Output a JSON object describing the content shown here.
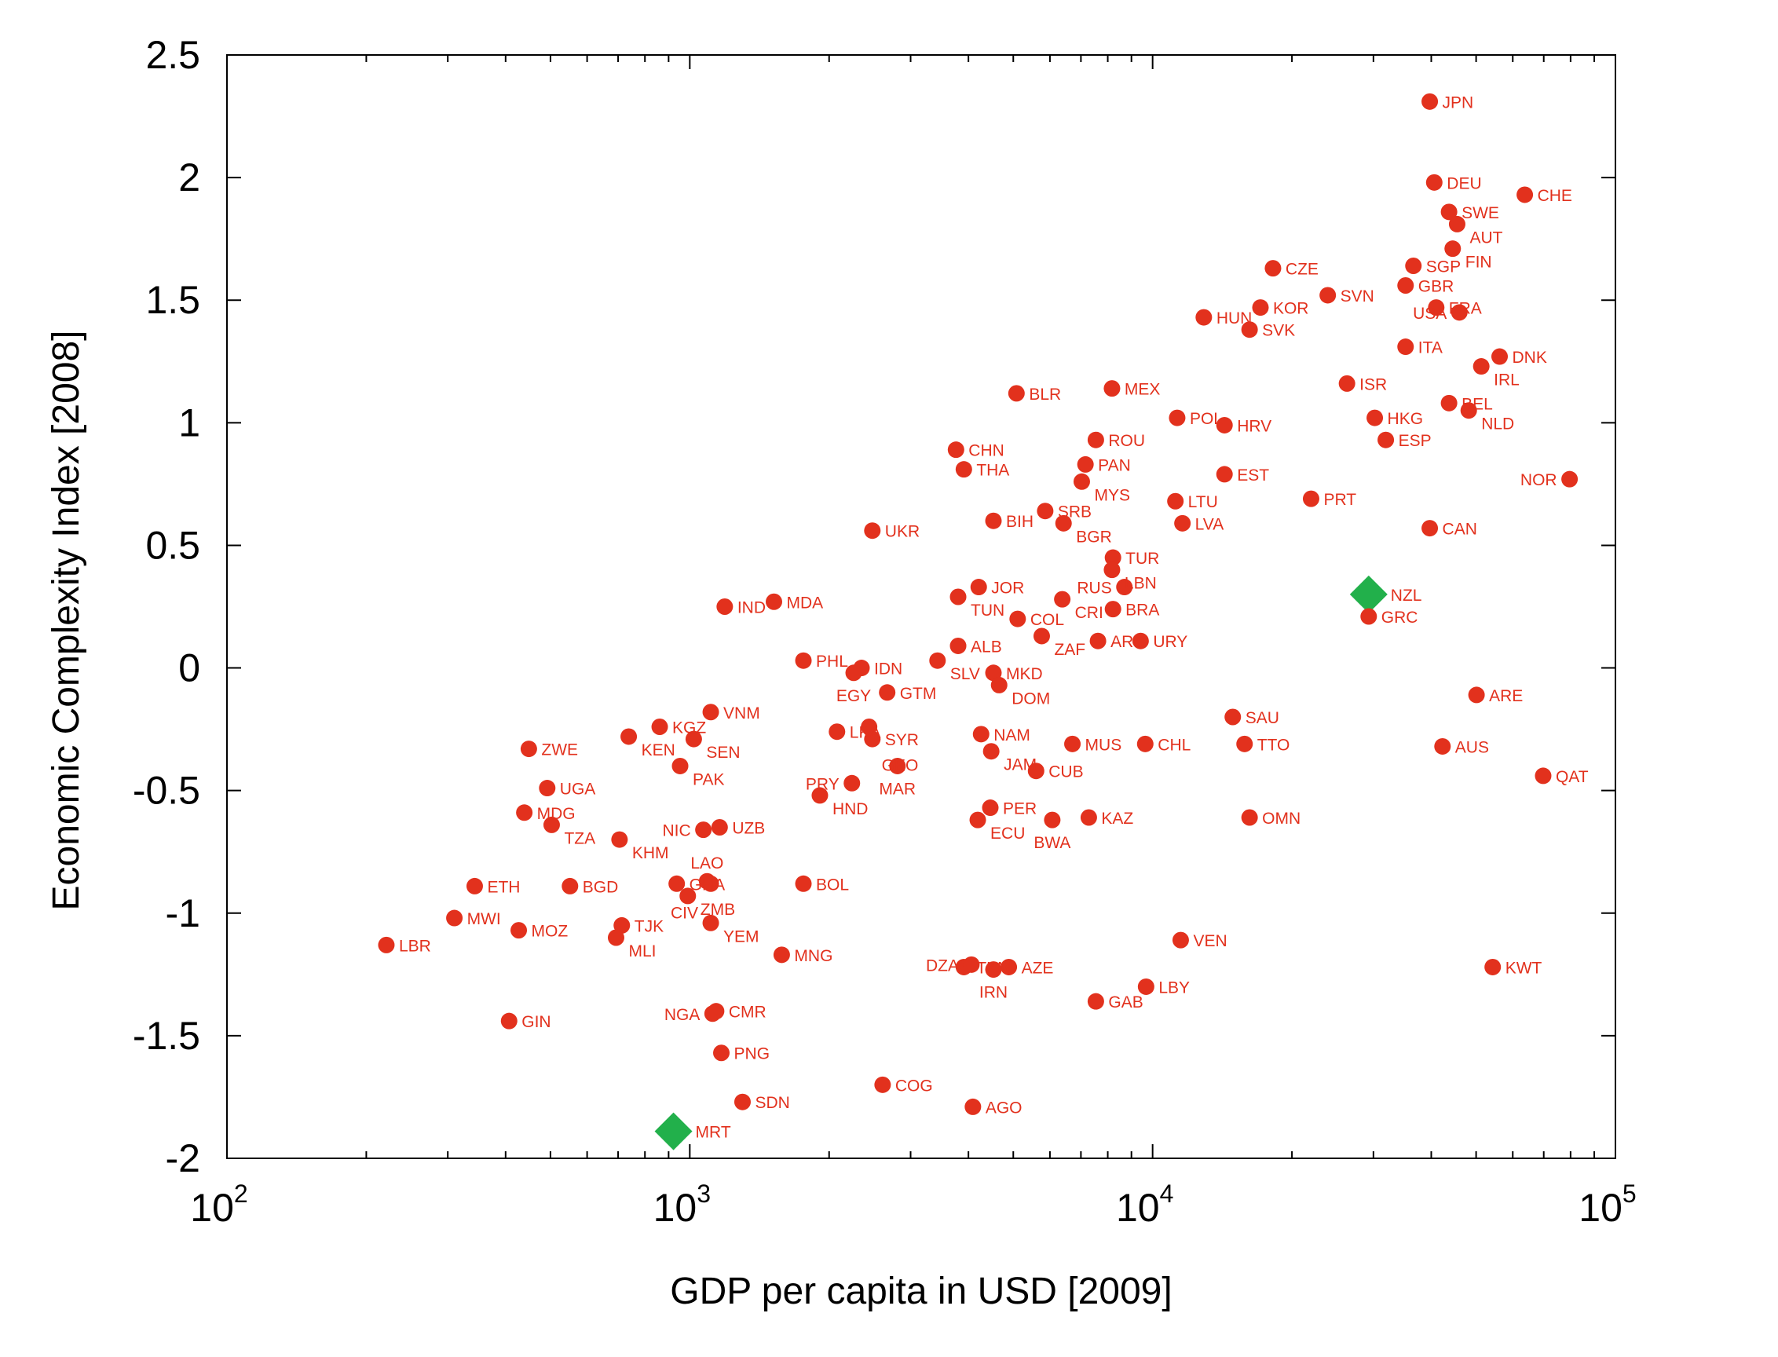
{
  "chart_data": {
    "type": "scatter",
    "title": "",
    "xlabel": "GDP per capita in USD [2009]",
    "ylabel": "Economic Complexity Index [2008]",
    "x_scale": "log",
    "xlim": [
      100,
      100000
    ],
    "ylim": [
      -2,
      2.5
    ],
    "grid": false,
    "x_ticks": [
      {
        "value": 100,
        "base": "10",
        "exp": "2"
      },
      {
        "value": 1000,
        "base": "10",
        "exp": "3"
      },
      {
        "value": 10000,
        "base": "10",
        "exp": "4"
      },
      {
        "value": 100000,
        "base": "10",
        "exp": "5"
      }
    ],
    "y_ticks": [
      {
        "value": 2.5,
        "label": "2.5"
      },
      {
        "value": 2,
        "label": "2"
      },
      {
        "value": 1.5,
        "label": "1.5"
      },
      {
        "value": 1,
        "label": "1"
      },
      {
        "value": 0.5,
        "label": "0.5"
      },
      {
        "value": 0,
        "label": "0"
      },
      {
        "value": -0.5,
        "label": "-0.5"
      },
      {
        "value": -1,
        "label": "-1"
      },
      {
        "value": -1.5,
        "label": "-1.5"
      },
      {
        "value": -2,
        "label": "-2"
      }
    ],
    "colors": {
      "point": "#e2311d",
      "highlight": "#22b04b"
    },
    "points": [
      {
        "label": "JPN",
        "x": 39700,
        "y": 2.31
      },
      {
        "label": "DEU",
        "x": 40600,
        "y": 1.98
      },
      {
        "label": "CHE",
        "x": 63700,
        "y": 1.93
      },
      {
        "label": "SWE",
        "x": 43700,
        "y": 1.86
      },
      {
        "label": "AUT",
        "x": 45500,
        "y": 1.81
      },
      {
        "label": "FIN",
        "x": 44500,
        "y": 1.71
      },
      {
        "label": "CZE",
        "x": 18200,
        "y": 1.63
      },
      {
        "label": "SGP",
        "x": 36600,
        "y": 1.64
      },
      {
        "label": "GBR",
        "x": 35200,
        "y": 1.56
      },
      {
        "label": "SVN",
        "x": 23900,
        "y": 1.52
      },
      {
        "label": "HUN",
        "x": 12900,
        "y": 1.43
      },
      {
        "label": "KOR",
        "x": 17100,
        "y": 1.47
      },
      {
        "label": "FRA",
        "x": 41000,
        "y": 1.47
      },
      {
        "label": "USA",
        "x": 46000,
        "y": 1.45
      },
      {
        "label": "SVK",
        "x": 16200,
        "y": 1.38
      },
      {
        "label": "ITA",
        "x": 35200,
        "y": 1.31
      },
      {
        "label": "DNK",
        "x": 56200,
        "y": 1.27
      },
      {
        "label": "IRL",
        "x": 51300,
        "y": 1.23
      },
      {
        "label": "ISR",
        "x": 26300,
        "y": 1.16
      },
      {
        "label": "BLR",
        "x": 5080,
        "y": 1.12
      },
      {
        "label": "MEX",
        "x": 8170,
        "y": 1.14
      },
      {
        "label": "BEL",
        "x": 43700,
        "y": 1.08
      },
      {
        "label": "POL",
        "x": 11300,
        "y": 1.02
      },
      {
        "label": "HKG",
        "x": 30200,
        "y": 1.02
      },
      {
        "label": "NLD",
        "x": 48200,
        "y": 1.05
      },
      {
        "label": "HRV",
        "x": 14300,
        "y": 0.99
      },
      {
        "label": "ESP",
        "x": 31900,
        "y": 0.93
      },
      {
        "label": "ROU",
        "x": 7540,
        "y": 0.93
      },
      {
        "label": "CHN",
        "x": 3760,
        "y": 0.89
      },
      {
        "label": "THA",
        "x": 3910,
        "y": 0.81
      },
      {
        "label": "PAN",
        "x": 7160,
        "y": 0.83
      },
      {
        "label": "MYS",
        "x": 7030,
        "y": 0.76
      },
      {
        "label": "EST",
        "x": 14300,
        "y": 0.79
      },
      {
        "label": "NOR",
        "x": 79600,
        "y": 0.77
      },
      {
        "label": "PRT",
        "x": 22000,
        "y": 0.69
      },
      {
        "label": "LTU",
        "x": 11200,
        "y": 0.68
      },
      {
        "label": "SRB",
        "x": 5860,
        "y": 0.64
      },
      {
        "label": "BIH",
        "x": 4530,
        "y": 0.6
      },
      {
        "label": "BGR",
        "x": 6420,
        "y": 0.59
      },
      {
        "label": "LVA",
        "x": 11600,
        "y": 0.59
      },
      {
        "label": "UKR",
        "x": 2480,
        "y": 0.56
      },
      {
        "label": "CAN",
        "x": 39700,
        "y": 0.57
      },
      {
        "label": "TUR",
        "x": 8210,
        "y": 0.45
      },
      {
        "label": "LBN",
        "x": 8170,
        "y": 0.4
      },
      {
        "label": "GRC",
        "x": 29300,
        "y": 0.21
      },
      {
        "label": "JOR",
        "x": 4210,
        "y": 0.33
      },
      {
        "label": "TUN",
        "x": 3800,
        "y": 0.29
      },
      {
        "label": "RUS",
        "x": 8690,
        "y": 0.33
      },
      {
        "label": "IND",
        "x": 1190,
        "y": 0.25
      },
      {
        "label": "MDA",
        "x": 1520,
        "y": 0.27
      },
      {
        "label": "CRI",
        "x": 6380,
        "y": 0.28
      },
      {
        "label": "BRA",
        "x": 8210,
        "y": 0.24
      },
      {
        "label": "COL",
        "x": 5110,
        "y": 0.2
      },
      {
        "label": "ZAF",
        "x": 5760,
        "y": 0.13
      },
      {
        "label": "ARG",
        "x": 7620,
        "y": 0.11
      },
      {
        "label": "URY",
        "x": 9420,
        "y": 0.11
      },
      {
        "label": "ALB",
        "x": 3800,
        "y": 0.09
      },
      {
        "label": "PHL",
        "x": 1760,
        "y": 0.03
      },
      {
        "label": "IDN",
        "x": 2350,
        "y": 0.0
      },
      {
        "label": "EGY",
        "x": 2260,
        "y": -0.02
      },
      {
        "label": "SLV",
        "x": 3430,
        "y": 0.03
      },
      {
        "label": "MKD",
        "x": 4530,
        "y": -0.02
      },
      {
        "label": "DOM",
        "x": 4660,
        "y": -0.07
      },
      {
        "label": "GTM",
        "x": 2670,
        "y": -0.1
      },
      {
        "label": "ARE",
        "x": 50100,
        "y": -0.11
      },
      {
        "label": "VNM",
        "x": 1110,
        "y": -0.18
      },
      {
        "label": "SAU",
        "x": 14900,
        "y": -0.2
      },
      {
        "label": "KGZ",
        "x": 861,
        "y": -0.24
      },
      {
        "label": "KEN",
        "x": 738,
        "y": -0.28
      },
      {
        "label": "SEN",
        "x": 1020,
        "y": -0.29
      },
      {
        "label": "LKA",
        "x": 2080,
        "y": -0.26
      },
      {
        "label": "GEO",
        "x": 2440,
        "y": -0.24
      },
      {
        "label": "SYR",
        "x": 2480,
        "y": -0.29
      },
      {
        "label": "NAM",
        "x": 4260,
        "y": -0.27
      },
      {
        "label": "JAM",
        "x": 4480,
        "y": -0.34
      },
      {
        "label": "MUS",
        "x": 6710,
        "y": -0.31
      },
      {
        "label": "CHL",
        "x": 9640,
        "y": -0.31
      },
      {
        "label": "TTO",
        "x": 15800,
        "y": -0.31
      },
      {
        "label": "AUS",
        "x": 42300,
        "y": -0.32
      },
      {
        "label": "ZWE",
        "x": 449,
        "y": -0.33
      },
      {
        "label": "PAK",
        "x": 953,
        "y": -0.4
      },
      {
        "label": "MAR",
        "x": 2810,
        "y": -0.4
      },
      {
        "label": "CUB",
        "x": 5600,
        "y": -0.42
      },
      {
        "label": "QAT",
        "x": 69800,
        "y": -0.44
      },
      {
        "label": "UGA",
        "x": 492,
        "y": -0.49
      },
      {
        "label": "PRY",
        "x": 2240,
        "y": -0.47
      },
      {
        "label": "HND",
        "x": 1910,
        "y": -0.52
      },
      {
        "label": "MDG",
        "x": 439,
        "y": -0.59
      },
      {
        "label": "PER",
        "x": 4460,
        "y": -0.57
      },
      {
        "label": "KAZ",
        "x": 7280,
        "y": -0.61
      },
      {
        "label": "OMN",
        "x": 16200,
        "y": -0.61
      },
      {
        "label": "ECU",
        "x": 4190,
        "y": -0.62
      },
      {
        "label": "BWA",
        "x": 6070,
        "y": -0.62
      },
      {
        "label": "TZA",
        "x": 503,
        "y": -0.64
      },
      {
        "label": "UZB",
        "x": 1160,
        "y": -0.65
      },
      {
        "label": "NIC",
        "x": 1070,
        "y": -0.66
      },
      {
        "label": "KHM",
        "x": 705,
        "y": -0.7
      },
      {
        "label": "ETH",
        "x": 343,
        "y": -0.89
      },
      {
        "label": "BGD",
        "x": 551,
        "y": -0.89
      },
      {
        "label": "GHA",
        "x": 937,
        "y": -0.88
      },
      {
        "label": "ZMB",
        "x": 990,
        "y": -0.93
      },
      {
        "label": "LAO",
        "x": 1090,
        "y": -0.87
      },
      {
        "label": "CIV",
        "x": 1110,
        "y": -0.88
      },
      {
        "label": "BOL",
        "x": 1760,
        "y": -0.88
      },
      {
        "label": "MWI",
        "x": 310,
        "y": -1.02
      },
      {
        "label": "MOZ",
        "x": 427,
        "y": -1.07
      },
      {
        "label": "TJK",
        "x": 713,
        "y": -1.05
      },
      {
        "label": "MLI",
        "x": 693,
        "y": -1.1
      },
      {
        "label": "YEM",
        "x": 1110,
        "y": -1.04
      },
      {
        "label": "LBR",
        "x": 221,
        "y": -1.13
      },
      {
        "label": "MNG",
        "x": 1580,
        "y": -1.17
      },
      {
        "label": "VEN",
        "x": 11500,
        "y": -1.11
      },
      {
        "label": "KWT",
        "x": 54300,
        "y": -1.22
      },
      {
        "label": "TKM",
        "x": 3910,
        "y": -1.22
      },
      {
        "label": "DZA",
        "x": 4060,
        "y": -1.21
      },
      {
        "label": "AZE",
        "x": 4890,
        "y": -1.22
      },
      {
        "label": "IRN",
        "x": 4530,
        "y": -1.23
      },
      {
        "label": "LBY",
        "x": 9680,
        "y": -1.3
      },
      {
        "label": "GAB",
        "x": 7540,
        "y": -1.36
      },
      {
        "label": "GIN",
        "x": 407,
        "y": -1.44
      },
      {
        "label": "CMR",
        "x": 1140,
        "y": -1.4
      },
      {
        "label": "NGA",
        "x": 1120,
        "y": -1.41
      },
      {
        "label": "PNG",
        "x": 1170,
        "y": -1.57
      },
      {
        "label": "COG",
        "x": 2610,
        "y": -1.7
      },
      {
        "label": "SDN",
        "x": 1300,
        "y": -1.77
      },
      {
        "label": "AGO",
        "x": 4090,
        "y": -1.79
      }
    ],
    "highlighted": [
      {
        "label": "NZL",
        "x": 29300,
        "y": 0.3,
        "marker": "diamond"
      },
      {
        "label": "MRT",
        "x": 922,
        "y": -1.89,
        "marker": "diamond"
      }
    ]
  }
}
